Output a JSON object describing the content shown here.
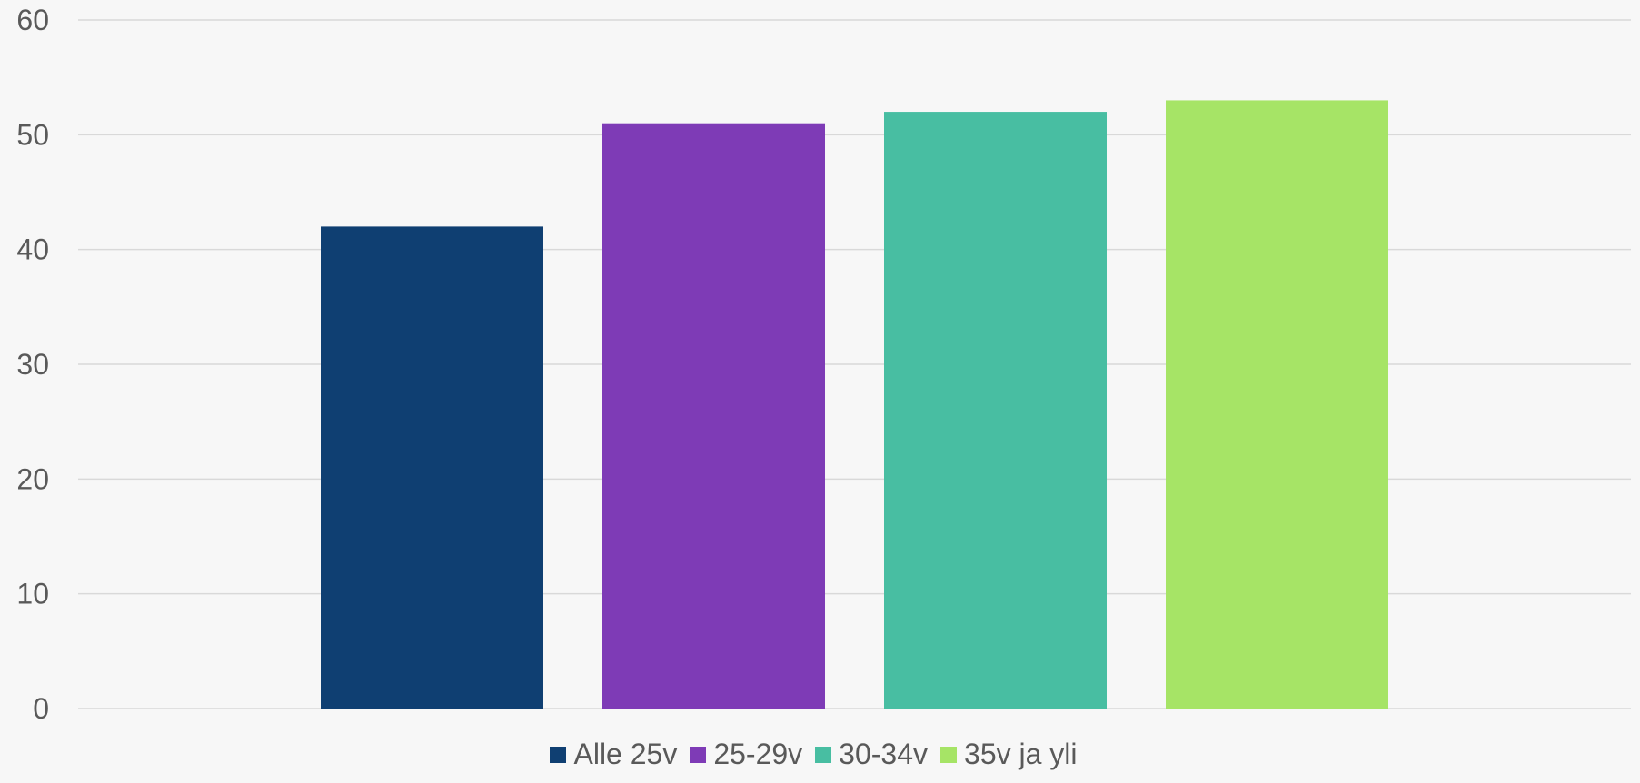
{
  "chart_data": {
    "type": "bar",
    "categories": [
      ""
    ],
    "series": [
      {
        "name": "Alle 25v",
        "values": [
          42
        ],
        "color": "#0f3f72"
      },
      {
        "name": "25-29v",
        "values": [
          51
        ],
        "color": "#7e3bb6"
      },
      {
        "name": "30-34v",
        "values": [
          52
        ],
        "color": "#48bea2"
      },
      {
        "name": "35v ja yli",
        "values": [
          53
        ],
        "color": "#a6e466"
      }
    ],
    "ylim": [
      0,
      60
    ],
    "yticks": [
      "0",
      "10",
      "20",
      "30",
      "40",
      "50",
      "60"
    ],
    "grid": true,
    "legend_position": "bottom",
    "colors": {
      "background": "#f7f7f7",
      "gridline": "#d9d9d9",
      "tick_text": "#595959"
    }
  }
}
